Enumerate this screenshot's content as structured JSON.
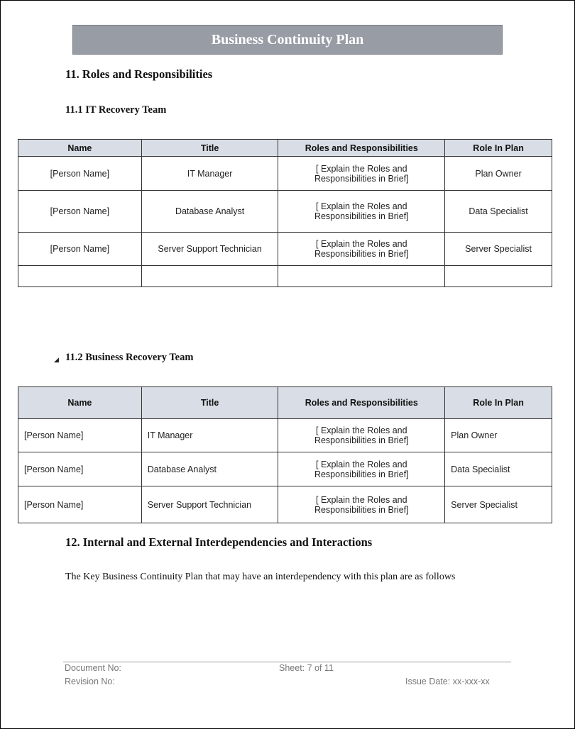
{
  "header": {
    "title": "Business Continuity Plan"
  },
  "section11": {
    "heading": "11. Roles and Responsibilities"
  },
  "section11_1": {
    "heading": "11.1 IT Recovery Team",
    "columns": [
      "Name",
      "Title",
      "Roles and Responsibilities",
      "Role In Plan"
    ],
    "rows": [
      [
        "[Person Name]",
        "IT Manager",
        "[ Explain the Roles and Responsibilities in Brief]",
        "Plan Owner"
      ],
      [
        "[Person Name]",
        "Database Analyst",
        "[ Explain the Roles and Responsibilities in Brief]",
        "Data Specialist"
      ],
      [
        "[Person Name]",
        "Server Support Technician",
        "[ Explain the Roles and Responsibilities in Brief]",
        "Server Specialist"
      ],
      [
        "",
        "",
        "",
        ""
      ]
    ]
  },
  "section11_2": {
    "heading": "11.2 Business Recovery Team",
    "collapse_icon": "triangle-collapse-icon",
    "columns": [
      "Name",
      "Title",
      "Roles and Responsibilities",
      "Role In Plan"
    ],
    "rows": [
      [
        "[Person Name]",
        "IT Manager",
        "[ Explain the Roles and Responsibilities in Brief]",
        "Plan Owner"
      ],
      [
        "[Person Name]",
        "Database Analyst",
        "[ Explain the Roles and Responsibilities in Brief]",
        "Data Specialist"
      ],
      [
        "[Person Name]",
        "Server Support Technician",
        "[ Explain the Roles and Responsibilities in Brief]",
        "Server Specialist"
      ]
    ]
  },
  "section12": {
    "heading": "12. Internal and External Interdependencies and Interactions",
    "paragraph": "The Key Business Continuity Plan that may have an interdependency with this plan are as follows"
  },
  "footer": {
    "document_no": "Document No:",
    "revision_no": "Revision No:",
    "sheet": "Sheet: 7 of 11",
    "issue_date": "Issue Date: xx-xxx-xx"
  }
}
